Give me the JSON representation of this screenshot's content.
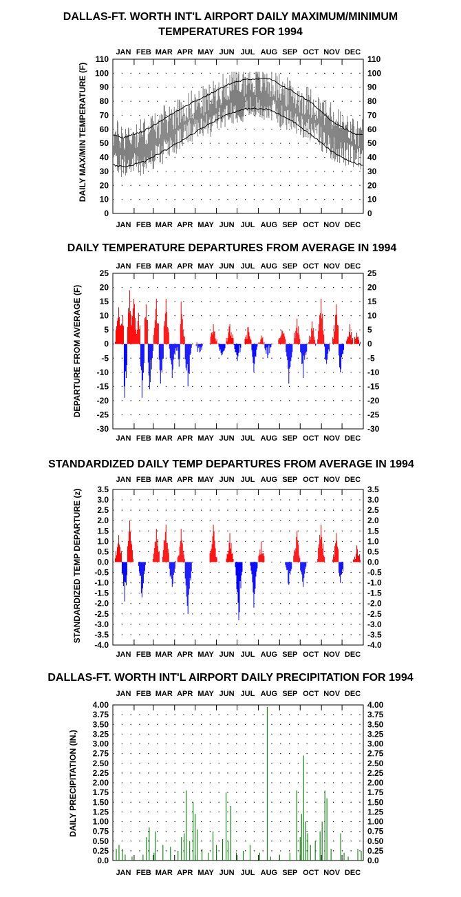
{
  "months": [
    "JAN",
    "FEB",
    "MAR",
    "APR",
    "MAY",
    "JUN",
    "JUL",
    "AUG",
    "SEP",
    "OCT",
    "NOV",
    "DEC"
  ],
  "chart_data": [
    {
      "type": "line",
      "title": "DALLAS-FT. WORTH INT'L AIRPORT DAILY MAXIMUM/MINIMUM",
      "subtitle": "TEMPERATURES FOR 1994",
      "ylabel": "DAILY MAX/MIN TEMPERATURE (F)",
      "xlabel": "",
      "ylim": [
        0,
        110
      ],
      "yticks": [
        0,
        10,
        20,
        30,
        40,
        50,
        60,
        70,
        80,
        90,
        100,
        110
      ],
      "grid": true,
      "colors": {
        "range": "#808080",
        "normals": "#000000"
      },
      "normals_high_monthly": [
        54,
        59,
        68,
        77,
        84,
        92,
        96,
        96,
        88,
        79,
        66,
        57
      ],
      "normals_low_monthly": [
        33,
        37,
        45,
        54,
        63,
        71,
        75,
        74,
        67,
        56,
        44,
        36
      ],
      "daily_high_monthly_mean": [
        55,
        58,
        67,
        76,
        81,
        92,
        95,
        93,
        85,
        79,
        68,
        58
      ],
      "daily_low_monthly_mean": [
        34,
        35,
        45,
        57,
        62,
        72,
        75,
        74,
        66,
        60,
        46,
        40
      ],
      "extremes": {
        "max_high": 101,
        "min_low": 18
      }
    },
    {
      "type": "bar",
      "title": "DAILY TEMPERATURE DEPARTURES FROM AVERAGE IN 1994",
      "ylabel": "DEPARTURE FROM AVERAGE (F)",
      "xlabel": "",
      "ylim": [
        -30,
        25
      ],
      "yticks": [
        25,
        20,
        15,
        10,
        5,
        0,
        -5,
        -10,
        -15,
        -20,
        -25,
        -30
      ],
      "grid": true,
      "colors": {
        "positive": "#ff0000",
        "negative": "#0000ff"
      },
      "peaks": [
        {
          "day": 8,
          "value": 13
        },
        {
          "day": 14,
          "value": 10
        },
        {
          "day": 17,
          "value": -19
        },
        {
          "day": 24,
          "value": 19
        },
        {
          "day": 30,
          "value": 16
        },
        {
          "day": 37,
          "value": 11
        },
        {
          "day": 42,
          "value": -19
        },
        {
          "day": 48,
          "value": 14
        },
        {
          "day": 53,
          "value": -16
        },
        {
          "day": 63,
          "value": 16
        },
        {
          "day": 69,
          "value": -14
        },
        {
          "day": 77,
          "value": 16
        },
        {
          "day": 86,
          "value": -12
        },
        {
          "day": 96,
          "value": -8
        },
        {
          "day": 99,
          "value": 15
        },
        {
          "day": 109,
          "value": -15
        },
        {
          "day": 126,
          "value": -3
        },
        {
          "day": 146,
          "value": 7
        },
        {
          "day": 158,
          "value": -4
        },
        {
          "day": 170,
          "value": 7
        },
        {
          "day": 181,
          "value": -6
        },
        {
          "day": 197,
          "value": 6
        },
        {
          "day": 205,
          "value": -10
        },
        {
          "day": 216,
          "value": 3
        },
        {
          "day": 225,
          "value": -5
        },
        {
          "day": 246,
          "value": 5
        },
        {
          "day": 256,
          "value": -14
        },
        {
          "day": 268,
          "value": 9
        },
        {
          "day": 277,
          "value": -12
        },
        {
          "day": 290,
          "value": 8
        },
        {
          "day": 303,
          "value": 16
        },
        {
          "day": 311,
          "value": -7
        },
        {
          "day": 325,
          "value": 14
        },
        {
          "day": 331,
          "value": -10
        },
        {
          "day": 345,
          "value": 7
        },
        {
          "day": 355,
          "value": 4
        }
      ]
    },
    {
      "type": "bar",
      "title": "STANDARDIZED DAILY TEMP DEPARTURES FROM AVERAGE IN 1994",
      "ylabel": "STANDARDIZED TEMP DEPARTURE (z)",
      "xlabel": "",
      "ylim": [
        -4.0,
        3.5
      ],
      "yticks": [
        "3.5",
        "3.0",
        "2.5",
        "2.0",
        "1.5",
        "1.0",
        "0.5",
        "0.0",
        "-0.5",
        "-1.0",
        "-1.5",
        "-2.0",
        "-2.5",
        "-3.0",
        "-3.5",
        "-4.0"
      ],
      "grid": true,
      "colors": {
        "positive": "#ff0000",
        "negative": "#0000ff"
      },
      "peaks": [
        {
          "day": 8,
          "value": 1.3
        },
        {
          "day": 17,
          "value": -1.9
        },
        {
          "day": 24,
          "value": 2.0
        },
        {
          "day": 42,
          "value": -1.7
        },
        {
          "day": 63,
          "value": 1.6
        },
        {
          "day": 77,
          "value": 1.8
        },
        {
          "day": 86,
          "value": -1.2
        },
        {
          "day": 99,
          "value": 1.6
        },
        {
          "day": 109,
          "value": -2.5
        },
        {
          "day": 146,
          "value": 1.8
        },
        {
          "day": 170,
          "value": 1.4
        },
        {
          "day": 183,
          "value": -2.8
        },
        {
          "day": 205,
          "value": -2.2
        },
        {
          "day": 216,
          "value": 1.0
        },
        {
          "day": 256,
          "value": -1.1
        },
        {
          "day": 268,
          "value": 1.5
        },
        {
          "day": 277,
          "value": -1.2
        },
        {
          "day": 303,
          "value": 1.8
        },
        {
          "day": 325,
          "value": 1.4
        },
        {
          "day": 331,
          "value": -1.0
        },
        {
          "day": 355,
          "value": 0.8
        }
      ]
    },
    {
      "type": "bar",
      "title": "DALLAS-FT. WORTH INT'L AIRPORT DAILY PRECIPITATION FOR 1994",
      "ylabel": "DAILY PRECIPITATION (IN.)",
      "xlabel": "",
      "ylim": [
        0,
        4.0
      ],
      "yticks": [
        "4.00",
        "3.75",
        "3.50",
        "3.25",
        "3.00",
        "2.75",
        "2.50",
        "2.25",
        "2.00",
        "1.75",
        "1.50",
        "1.25",
        "1.00",
        "0.75",
        "0.50",
        "0.25",
        "0.0"
      ],
      "grid": true,
      "colors": {
        "bars": "#008000"
      },
      "events": [
        {
          "day": 5,
          "value": 0.3
        },
        {
          "day": 9,
          "value": 0.4
        },
        {
          "day": 14,
          "value": 0.3
        },
        {
          "day": 18,
          "value": 0.15
        },
        {
          "day": 28,
          "value": 0.1
        },
        {
          "day": 44,
          "value": 0.15
        },
        {
          "day": 49,
          "value": 0.6
        },
        {
          "day": 53,
          "value": 0.85
        },
        {
          "day": 60,
          "value": 0.2
        },
        {
          "day": 62,
          "value": 0.75
        },
        {
          "day": 73,
          "value": 0.4
        },
        {
          "day": 84,
          "value": 0.35
        },
        {
          "day": 95,
          "value": 0.25
        },
        {
          "day": 100,
          "value": 0.6
        },
        {
          "day": 104,
          "value": 0.7
        },
        {
          "day": 107,
          "value": 1.8
        },
        {
          "day": 112,
          "value": 0.5
        },
        {
          "day": 117,
          "value": 1.5
        },
        {
          "day": 120,
          "value": 1.2
        },
        {
          "day": 123,
          "value": 0.8
        },
        {
          "day": 130,
          "value": 0.3
        },
        {
          "day": 139,
          "value": 0.2
        },
        {
          "day": 146,
          "value": 0.75
        },
        {
          "day": 151,
          "value": 0.4
        },
        {
          "day": 160,
          "value": 0.55
        },
        {
          "day": 165,
          "value": 1.75
        },
        {
          "day": 168,
          "value": 0.5
        },
        {
          "day": 172,
          "value": 1.4
        },
        {
          "day": 180,
          "value": 0.2
        },
        {
          "day": 190,
          "value": 0.25
        },
        {
          "day": 200,
          "value": 0.4
        },
        {
          "day": 214,
          "value": 0.2
        },
        {
          "day": 225,
          "value": 3.95
        },
        {
          "day": 230,
          "value": 0.1
        },
        {
          "day": 243,
          "value": 0.15
        },
        {
          "day": 258,
          "value": 0.2
        },
        {
          "day": 268,
          "value": 1.8
        },
        {
          "day": 273,
          "value": 0.6
        },
        {
          "day": 275,
          "value": 1.2
        },
        {
          "day": 278,
          "value": 2.7
        },
        {
          "day": 281,
          "value": 1.0
        },
        {
          "day": 284,
          "value": 0.7
        },
        {
          "day": 288,
          "value": 0.4
        },
        {
          "day": 295,
          "value": 0.5
        },
        {
          "day": 302,
          "value": 0.75
        },
        {
          "day": 305,
          "value": 1.0
        },
        {
          "day": 309,
          "value": 1.8
        },
        {
          "day": 312,
          "value": 1.6
        },
        {
          "day": 318,
          "value": 0.3
        },
        {
          "day": 332,
          "value": 0.7
        },
        {
          "day": 337,
          "value": 0.2
        },
        {
          "day": 343,
          "value": 0.1
        },
        {
          "day": 357,
          "value": 0.3
        },
        {
          "day": 362,
          "value": 0.25
        }
      ]
    }
  ]
}
